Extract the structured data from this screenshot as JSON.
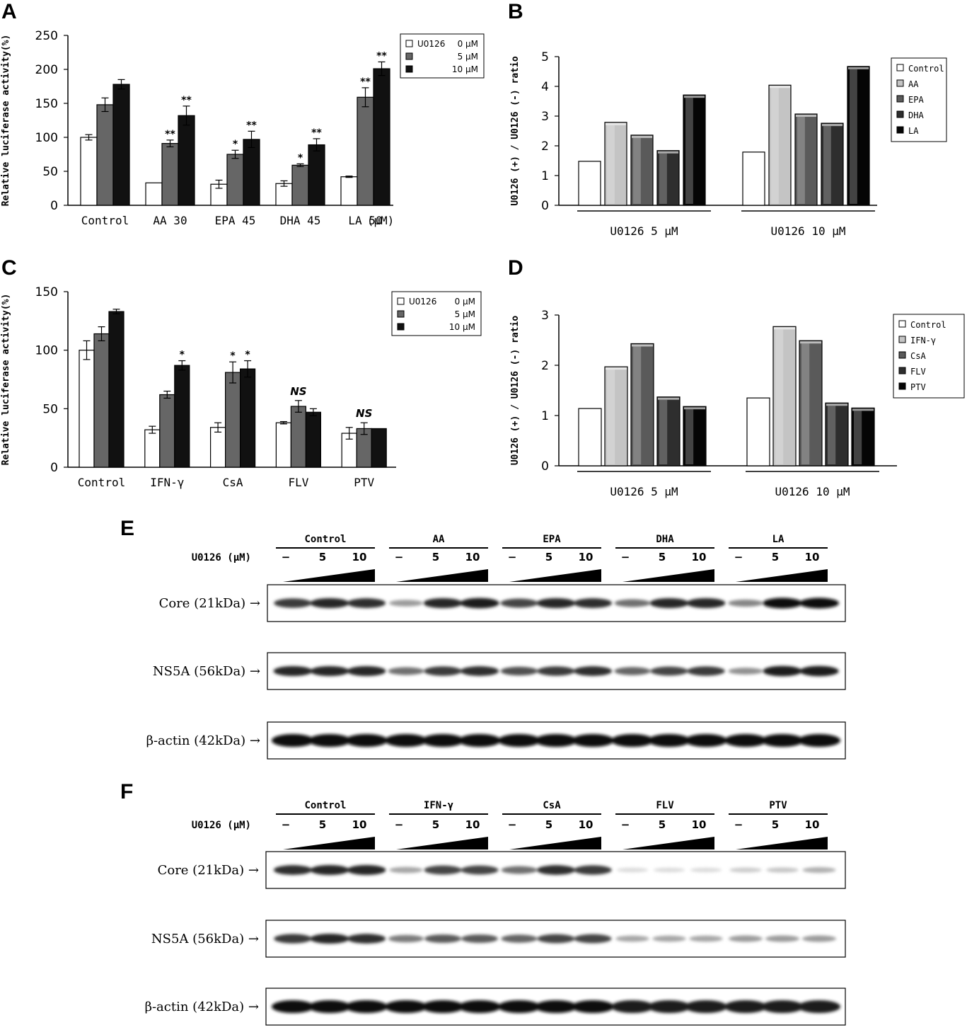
{
  "panels": {
    "a": "A",
    "b": "B",
    "c": "C",
    "d": "D",
    "e": "E",
    "f": "F"
  },
  "chart_data": [
    {
      "id": "A",
      "type": "bar",
      "ylabel": "Relative luciferase activity(%)",
      "ylim": [
        0,
        250
      ],
      "yticks": [
        0,
        50,
        100,
        150,
        200,
        250
      ],
      "categories": [
        "Control",
        "AA 30",
        "EPA 45",
        "DHA 45",
        "LA 50"
      ],
      "unit_label": "(μM)",
      "legend_title": "U0126",
      "legend_position": "top-right",
      "series": [
        {
          "name": "0 μM",
          "color": "#ffffff",
          "values": [
            100,
            33,
            31,
            32,
            42
          ],
          "errors": [
            4,
            0,
            6,
            4,
            1
          ],
          "marks": [
            "",
            "",
            "",
            "",
            ""
          ]
        },
        {
          "name": "5 μM",
          "color": "#666666",
          "values": [
            148,
            91,
            75,
            59,
            159
          ],
          "errors": [
            10,
            5,
            6,
            2,
            14
          ],
          "marks": [
            "",
            "**",
            "*",
            "*",
            "**"
          ]
        },
        {
          "name": "10 μM",
          "color": "#111111",
          "values": [
            178,
            132,
            97,
            89,
            201
          ],
          "errors": [
            7,
            14,
            12,
            9,
            10
          ],
          "marks": [
            "",
            "**",
            "**",
            "**",
            "**"
          ]
        }
      ]
    },
    {
      "id": "B",
      "type": "bar",
      "ylabel": "U0126 (+) / U0126 (-) ratio",
      "ylim": [
        0,
        5
      ],
      "yticks": [
        0,
        1,
        2,
        3,
        4,
        5
      ],
      "categories": [
        "U0126 5 μM",
        "U0126 10 μM"
      ],
      "legend_position": "top-right",
      "series": [
        {
          "name": "Control",
          "color": "#ffffff",
          "values": [
            1.48,
            1.79
          ]
        },
        {
          "name": "AA",
          "color": "#c4c4c4",
          "values": [
            2.79,
            4.04
          ]
        },
        {
          "name": "EPA",
          "color": "#5a5a5a",
          "values": [
            2.36,
            3.07
          ]
        },
        {
          "name": "DHA",
          "color": "#2e2e2e",
          "values": [
            1.84,
            2.76
          ]
        },
        {
          "name": "LA",
          "color": "#050505",
          "values": [
            3.71,
            4.67
          ]
        }
      ]
    },
    {
      "id": "C",
      "type": "bar",
      "ylabel": "Relative luciferase activity(%)",
      "ylim": [
        0,
        150
      ],
      "yticks": [
        0,
        50,
        100,
        150
      ],
      "categories": [
        "Control",
        "IFN-γ",
        "CsA",
        "FLV",
        "PTV"
      ],
      "legend_title": "U0126",
      "legend_position": "top-right",
      "group_marks": [
        "",
        "",
        "",
        "NS",
        "NS"
      ],
      "series": [
        {
          "name": "0 μM",
          "color": "#ffffff",
          "values": [
            100,
            32,
            34,
            38,
            29
          ],
          "errors": [
            8,
            3,
            4,
            1,
            5
          ],
          "marks": [
            "",
            "",
            "",
            "",
            ""
          ]
        },
        {
          "name": "5 μM",
          "color": "#666666",
          "values": [
            114,
            62,
            81,
            52,
            33
          ],
          "errors": [
            6,
            3,
            9,
            5,
            5
          ],
          "marks": [
            "",
            "",
            "*",
            "",
            ""
          ]
        },
        {
          "name": "10 μM",
          "color": "#111111",
          "values": [
            133,
            87,
            84,
            47,
            33
          ],
          "errors": [
            2,
            4,
            7,
            3,
            0
          ],
          "marks": [
            "",
            "*",
            "*",
            "",
            ""
          ]
        }
      ]
    },
    {
      "id": "D",
      "type": "bar",
      "ylabel": "U0126 (+) / U0126 (-) ratio",
      "ylim": [
        0,
        3
      ],
      "yticks": [
        0,
        1,
        2,
        3
      ],
      "categories": [
        "U0126 5 μM",
        "U0126 10 μM"
      ],
      "legend_position": "top-right",
      "series": [
        {
          "name": "Control",
          "color": "#ffffff",
          "values": [
            1.14,
            1.35
          ]
        },
        {
          "name": "IFN-γ",
          "color": "#c4c4c4",
          "values": [
            1.97,
            2.77
          ]
        },
        {
          "name": "CsA",
          "color": "#5a5a5a",
          "values": [
            2.43,
            2.49
          ]
        },
        {
          "name": "FLV",
          "color": "#2e2e2e",
          "values": [
            1.37,
            1.25
          ]
        },
        {
          "name": "PTV",
          "color": "#050505",
          "values": [
            1.18,
            1.15
          ]
        }
      ]
    }
  ],
  "blots": {
    "E": {
      "groups": [
        "Control",
        "AA",
        "EPA",
        "DHA",
        "LA"
      ],
      "lane_header": "U0126 (μM)",
      "lanes": [
        "−",
        "5",
        "10"
      ],
      "rows": [
        {
          "label": "Core (21kDa) →",
          "intensity": [
            0.8,
            0.9,
            0.85,
            0.35,
            0.9,
            0.95,
            0.75,
            0.9,
            0.85,
            0.55,
            0.9,
            0.9,
            0.45,
            1,
            1
          ]
        },
        {
          "label": "NS5A (56kDa) →",
          "intensity": [
            0.9,
            0.9,
            0.9,
            0.55,
            0.8,
            0.85,
            0.7,
            0.8,
            0.85,
            0.6,
            0.75,
            0.8,
            0.4,
            0.95,
            0.95
          ]
        },
        {
          "label": "β-actin (42kDa) →",
          "intensity": [
            1,
            1,
            1,
            1,
            1,
            1,
            1,
            1,
            1,
            1,
            1,
            1,
            1,
            1,
            1
          ]
        }
      ]
    },
    "F": {
      "groups": [
        "Control",
        "IFN-γ",
        "CsA",
        "FLV",
        "PTV"
      ],
      "lane_header": "U0126 (μM)",
      "lanes": [
        "−",
        "5",
        "10"
      ],
      "rows": [
        {
          "label": "Core (21kDa) →",
          "intensity": [
            0.85,
            0.9,
            0.9,
            0.3,
            0.75,
            0.75,
            0.55,
            0.85,
            0.8,
            0.05,
            0.05,
            0.05,
            0.12,
            0.15,
            0.25
          ]
        },
        {
          "label": "NS5A (56kDa) →",
          "intensity": [
            0.8,
            0.9,
            0.85,
            0.5,
            0.65,
            0.65,
            0.6,
            0.75,
            0.75,
            0.3,
            0.3,
            0.3,
            0.35,
            0.35,
            0.35
          ]
        },
        {
          "label": "β-actin (42kDa) →",
          "intensity": [
            1,
            1,
            1,
            1,
            1,
            1,
            1,
            1,
            1,
            0.95,
            0.95,
            0.95,
            0.95,
            0.95,
            0.95
          ]
        }
      ]
    }
  }
}
